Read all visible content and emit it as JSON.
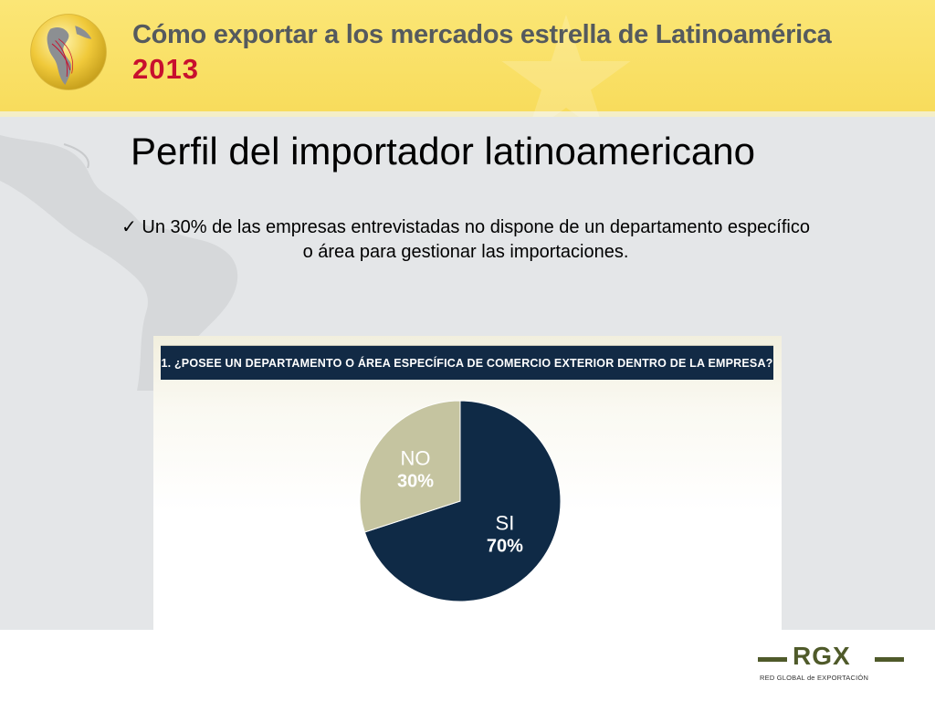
{
  "header": {
    "title": "Cómo exportar a los mercados estrella de Latinoamérica",
    "year": "2013",
    "globe_icon": "globe-icon",
    "colors": {
      "band": "#f8dc5c",
      "title": "#555a5e",
      "year": "#c8102e"
    }
  },
  "slide": {
    "title": "Perfil del importador latinoamericano",
    "bullet_mark": "✓",
    "bullet_text": "Un 30% de las empresas entrevistadas no dispone de un departamento específico o área para gestionar las importaciones."
  },
  "chart_data": {
    "type": "pie",
    "title": "1. ¿POSEE UN DEPARTAMENTO O ÁREA ESPECÍFICA DE COMERCIO EXTERIOR DENTRO DE LA EMPRESA?",
    "slices": [
      {
        "label": "SI",
        "value": 70,
        "display": "70%",
        "color": "#0f2a46"
      },
      {
        "label": "NO",
        "value": 30,
        "display": "30%",
        "color": "#c5c4a0"
      }
    ]
  },
  "footer": {
    "logo_text": "RGX",
    "logo_subtitle": "RED GLOBAL de EXPORTACIÓN",
    "logo_color": "#4f5a2a"
  }
}
